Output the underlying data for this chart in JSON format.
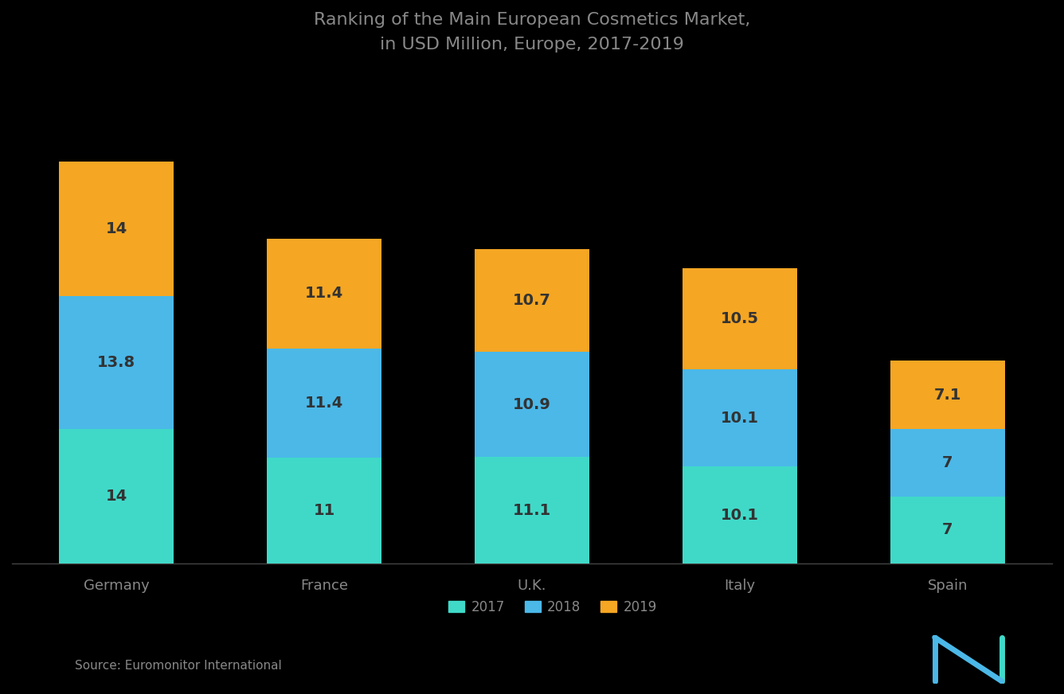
{
  "title_line1": "Ranking of the Main European Cosmetics Market,",
  "title_line2": "in USD Million, Europe, 2017-2019",
  "categories": [
    "Germany",
    "France",
    "U.K.",
    "Italy",
    "Spain"
  ],
  "series_keys": [
    "2017",
    "2018",
    "2019"
  ],
  "series": {
    "2017": [
      14.0,
      11.0,
      11.1,
      10.1,
      7.0
    ],
    "2018": [
      13.8,
      11.4,
      10.9,
      10.1,
      7.0
    ],
    "2019": [
      14.0,
      11.4,
      10.7,
      10.5,
      7.1
    ]
  },
  "colors": {
    "2017": "#40D9C8",
    "2018": "#4BB8E8",
    "2019": "#F5A623"
  },
  "source_text": "Source: Euromonitor International",
  "background_color": "#000000",
  "text_color": "#888888",
  "bar_label_color": "#333333",
  "title_color": "#888888",
  "bar_width": 0.55,
  "ylim_max": 50
}
